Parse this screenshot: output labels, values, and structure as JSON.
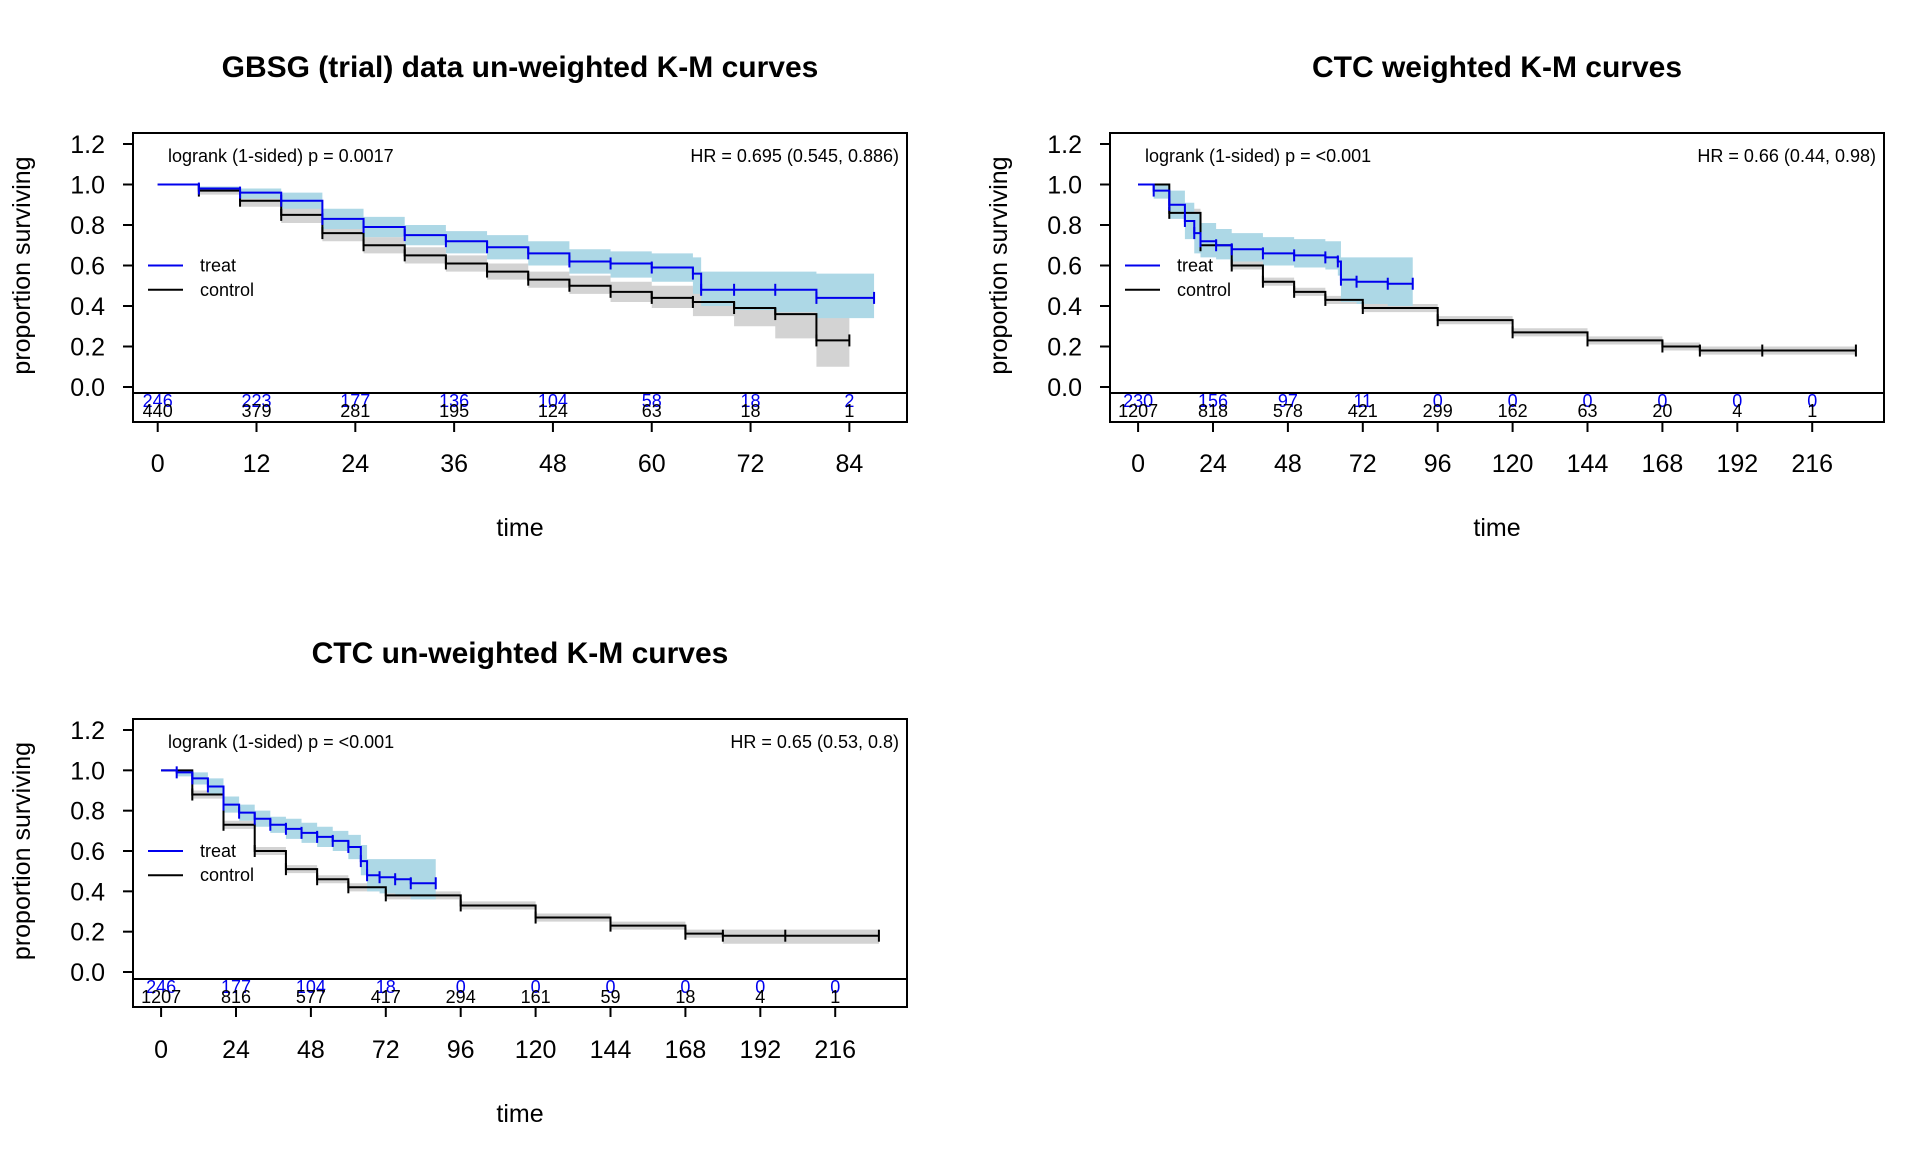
{
  "colors": {
    "treat": "#0000ee",
    "control": "#000000",
    "treat_band": "#add8e6",
    "control_band": "#d3d3d3"
  },
  "chart_data": [
    {
      "type": "line",
      "title": "GBSG (trial) data un-weighted K-M curves",
      "xlabel": "time",
      "ylabel": "proportion surviving",
      "xlim": [
        -3,
        91
      ],
      "ylim": [
        0,
        1.2
      ],
      "x_ticks": [
        "0",
        "12",
        "24",
        "36",
        "48",
        "60",
        "72",
        "84"
      ],
      "y_ticks": [
        "0.0",
        "0.2",
        "0.4",
        "0.6",
        "0.8",
        "1.0",
        "1.2"
      ],
      "grid": false,
      "legend_position": "left",
      "annotation_left": "logrank (1-sided) p = 0.0017",
      "annotation_right": "HR = 0.695 (0.545, 0.886)",
      "series": [
        {
          "name": "treat",
          "x": [
            0,
            5,
            10,
            15,
            20,
            25,
            30,
            35,
            40,
            45,
            50,
            55,
            60,
            65,
            66,
            70,
            75,
            80,
            87
          ],
          "y": [
            1.0,
            0.98,
            0.96,
            0.92,
            0.83,
            0.79,
            0.75,
            0.72,
            0.69,
            0.66,
            0.62,
            0.61,
            0.59,
            0.56,
            0.48,
            0.48,
            0.48,
            0.44,
            0.44
          ],
          "lower": [
            1.0,
            0.97,
            0.93,
            0.88,
            0.78,
            0.74,
            0.7,
            0.66,
            0.63,
            0.6,
            0.56,
            0.54,
            0.52,
            0.46,
            0.4,
            0.38,
            0.37,
            0.34,
            0.34
          ],
          "upper": [
            1.0,
            0.99,
            0.98,
            0.96,
            0.88,
            0.84,
            0.8,
            0.77,
            0.75,
            0.72,
            0.68,
            0.67,
            0.66,
            0.64,
            0.57,
            0.57,
            0.57,
            0.56,
            0.56
          ]
        },
        {
          "name": "control",
          "x": [
            0,
            5,
            10,
            15,
            20,
            25,
            30,
            35,
            40,
            45,
            50,
            55,
            60,
            65,
            70,
            75,
            80,
            84
          ],
          "y": [
            1.0,
            0.97,
            0.92,
            0.85,
            0.76,
            0.7,
            0.65,
            0.61,
            0.57,
            0.53,
            0.5,
            0.47,
            0.44,
            0.42,
            0.39,
            0.36,
            0.23,
            0.23
          ],
          "lower": [
            1.0,
            0.95,
            0.89,
            0.81,
            0.72,
            0.66,
            0.61,
            0.57,
            0.53,
            0.49,
            0.46,
            0.42,
            0.39,
            0.35,
            0.3,
            0.24,
            0.1,
            0.1
          ],
          "upper": [
            1.0,
            0.99,
            0.95,
            0.89,
            0.8,
            0.74,
            0.69,
            0.65,
            0.61,
            0.57,
            0.55,
            0.52,
            0.5,
            0.49,
            0.48,
            0.47,
            0.44,
            0.44
          ]
        }
      ],
      "risk_table": {
        "times": [
          0,
          12,
          24,
          36,
          48,
          60,
          72,
          84
        ],
        "treat": [
          "246",
          "223",
          "177",
          "136",
          "104",
          "58",
          "18",
          "2"
        ],
        "control": [
          "440",
          "379",
          "281",
          "195",
          "124",
          "63",
          "18",
          "1"
        ]
      }
    },
    {
      "type": "line",
      "title": "CTC weighted K-M curves",
      "xlabel": "time",
      "ylabel": "proportion surviving",
      "xlim": [
        -9,
        239
      ],
      "ylim": [
        0,
        1.2
      ],
      "x_ticks": [
        "0",
        "24",
        "48",
        "72",
        "96",
        "120",
        "144",
        "168",
        "192",
        "216"
      ],
      "y_ticks": [
        "0.0",
        "0.2",
        "0.4",
        "0.6",
        "0.8",
        "1.0",
        "1.2"
      ],
      "grid": false,
      "legend_position": "left",
      "annotation_left": "logrank (1-sided) p = <0.001",
      "annotation_right": "HR = 0.66 (0.44, 0.98)",
      "series": [
        {
          "name": "treat",
          "x": [
            0,
            5,
            10,
            15,
            18,
            20,
            25,
            30,
            40,
            50,
            60,
            64,
            65,
            70,
            80,
            88
          ],
          "y": [
            1.0,
            0.97,
            0.9,
            0.82,
            0.76,
            0.72,
            0.7,
            0.68,
            0.66,
            0.65,
            0.64,
            0.62,
            0.53,
            0.52,
            0.51,
            0.51
          ],
          "lower": [
            1.0,
            0.93,
            0.83,
            0.73,
            0.66,
            0.64,
            0.63,
            0.62,
            0.6,
            0.59,
            0.58,
            0.55,
            0.42,
            0.41,
            0.4,
            0.4
          ],
          "upper": [
            1.0,
            1.0,
            0.97,
            0.91,
            0.86,
            0.81,
            0.78,
            0.76,
            0.74,
            0.73,
            0.72,
            0.72,
            0.64,
            0.64,
            0.64,
            0.64
          ]
        },
        {
          "name": "control",
          "x": [
            0,
            10,
            20,
            30,
            40,
            50,
            60,
            72,
            96,
            120,
            144,
            168,
            180,
            200,
            230
          ],
          "y": [
            1.0,
            0.86,
            0.7,
            0.6,
            0.52,
            0.47,
            0.43,
            0.39,
            0.33,
            0.27,
            0.23,
            0.2,
            0.18,
            0.18,
            0.18
          ],
          "lower": [
            1.0,
            0.84,
            0.68,
            0.58,
            0.5,
            0.45,
            0.41,
            0.37,
            0.31,
            0.25,
            0.21,
            0.18,
            0.16,
            0.16,
            0.16
          ],
          "upper": [
            1.0,
            0.88,
            0.72,
            0.62,
            0.54,
            0.49,
            0.45,
            0.41,
            0.35,
            0.29,
            0.25,
            0.22,
            0.2,
            0.2,
            0.2
          ]
        }
      ],
      "risk_table": {
        "times": [
          0,
          24,
          48,
          72,
          96,
          120,
          144,
          168,
          192,
          216
        ],
        "treat": [
          "230",
          "156",
          "97",
          "11",
          "0",
          "0",
          "0",
          "0",
          "0",
          "0"
        ],
        "control": [
          "1207",
          "818",
          "578",
          "421",
          "299",
          "162",
          "63",
          "20",
          "4",
          "1"
        ]
      }
    },
    {
      "type": "line",
      "title": "CTC un-weighted K-M curves",
      "xlabel": "time",
      "ylabel": "proportion surviving",
      "xlim": [
        -9,
        239
      ],
      "ylim": [
        0,
        1.2
      ],
      "x_ticks": [
        "0",
        "24",
        "48",
        "72",
        "96",
        "120",
        "144",
        "168",
        "192",
        "216"
      ],
      "y_ticks": [
        "0.0",
        "0.2",
        "0.4",
        "0.6",
        "0.8",
        "1.0",
        "1.2"
      ],
      "grid": false,
      "legend_position": "left",
      "annotation_left": "logrank (1-sided) p = <0.001",
      "annotation_right": "HR = 0.65 (0.53, 0.8)",
      "series": [
        {
          "name": "treat",
          "x": [
            0,
            5,
            10,
            15,
            20,
            25,
            30,
            35,
            40,
            45,
            50,
            55,
            60,
            64,
            66,
            70,
            75,
            80,
            88
          ],
          "y": [
            1.0,
            0.99,
            0.96,
            0.92,
            0.83,
            0.79,
            0.76,
            0.73,
            0.71,
            0.69,
            0.67,
            0.65,
            0.62,
            0.55,
            0.48,
            0.47,
            0.46,
            0.44,
            0.44
          ],
          "lower": [
            1.0,
            0.97,
            0.93,
            0.88,
            0.79,
            0.75,
            0.72,
            0.69,
            0.66,
            0.64,
            0.62,
            0.6,
            0.56,
            0.48,
            0.4,
            0.39,
            0.38,
            0.36,
            0.36
          ],
          "upper": [
            1.0,
            1.0,
            0.99,
            0.96,
            0.87,
            0.83,
            0.8,
            0.77,
            0.76,
            0.74,
            0.72,
            0.7,
            0.68,
            0.63,
            0.56,
            0.56,
            0.56,
            0.56,
            0.56
          ]
        },
        {
          "name": "control",
          "x": [
            0,
            10,
            20,
            30,
            40,
            50,
            60,
            72,
            96,
            120,
            144,
            168,
            180,
            200,
            230
          ],
          "y": [
            1.0,
            0.88,
            0.73,
            0.6,
            0.51,
            0.46,
            0.42,
            0.38,
            0.33,
            0.27,
            0.23,
            0.19,
            0.18,
            0.18,
            0.18
          ],
          "lower": [
            1.0,
            0.86,
            0.71,
            0.58,
            0.49,
            0.44,
            0.4,
            0.36,
            0.31,
            0.25,
            0.21,
            0.17,
            0.14,
            0.14,
            0.14
          ],
          "upper": [
            1.0,
            0.9,
            0.75,
            0.62,
            0.53,
            0.48,
            0.44,
            0.4,
            0.35,
            0.29,
            0.25,
            0.21,
            0.21,
            0.21,
            0.21
          ]
        }
      ],
      "risk_table": {
        "times": [
          0,
          24,
          48,
          72,
          96,
          120,
          144,
          168,
          192,
          216
        ],
        "treat": [
          "246",
          "177",
          "104",
          "18",
          "0",
          "0",
          "0",
          "0",
          "0",
          "0"
        ],
        "control": [
          "1207",
          "816",
          "577",
          "417",
          "294",
          "161",
          "59",
          "18",
          "4",
          "1"
        ]
      }
    }
  ]
}
